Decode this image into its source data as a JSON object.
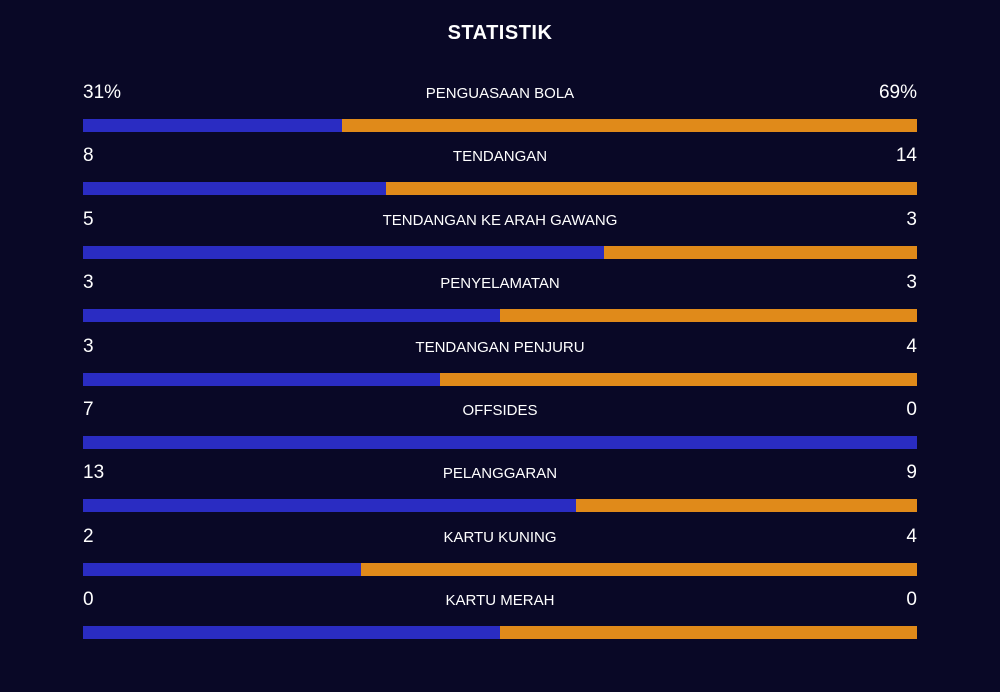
{
  "title": "STATISTIK",
  "colors": {
    "background": "#090826",
    "home": "#2a2cc2",
    "away": "#e08a1a"
  },
  "stats": [
    {
      "label": "PENGUASAAN BOLA",
      "home": "31%",
      "away": "69%",
      "home_share": 0.31
    },
    {
      "label": "TENDANGAN",
      "home": "8",
      "away": "14",
      "home_share": 0.3636
    },
    {
      "label": "TENDANGAN KE ARAH GAWANG",
      "home": "5",
      "away": "3",
      "home_share": 0.625
    },
    {
      "label": "PENYELAMATAN",
      "home": "3",
      "away": "3",
      "home_share": 0.5
    },
    {
      "label": "TENDANGAN PENJURU",
      "home": "3",
      "away": "4",
      "home_share": 0.4286
    },
    {
      "label": "OFFSIDES",
      "home": "7",
      "away": "0",
      "home_share": 1.0
    },
    {
      "label": "PELANGGARAN",
      "home": "13",
      "away": "9",
      "home_share": 0.5909
    },
    {
      "label": "KARTU KUNING",
      "home": "2",
      "away": "4",
      "home_share": 0.3333
    },
    {
      "label": "KARTU MERAH",
      "home": "0",
      "away": "0",
      "home_share": 0.5
    }
  ]
}
